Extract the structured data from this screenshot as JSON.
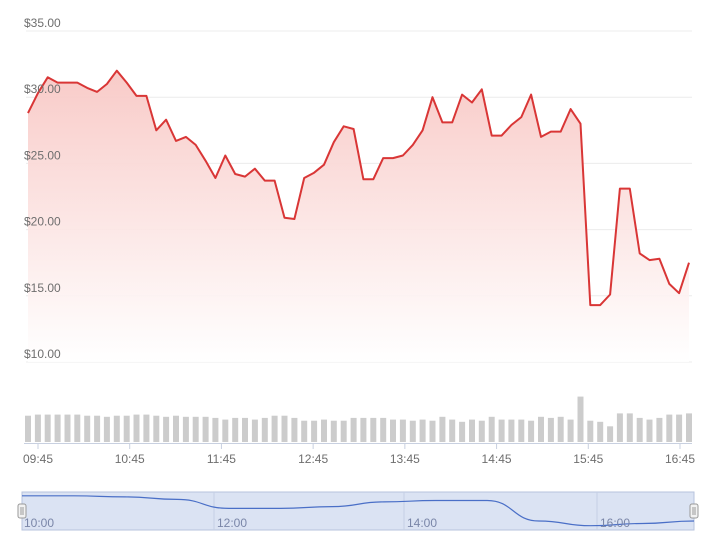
{
  "chart_data": {
    "type": "line",
    "title": "",
    "xlabel": "",
    "ylabel": "",
    "ylim": [
      10,
      35
    ],
    "y_ticks": [
      "$10.00",
      "$15.00",
      "$20.00",
      "$25.00",
      "$30.00",
      "$35.00"
    ],
    "y_tick_values": [
      10,
      15,
      20,
      25,
      30,
      35
    ],
    "x_ticks": [
      "09:45",
      "10:45",
      "11:45",
      "12:45",
      "13:45",
      "14:45",
      "15:45",
      "16:45"
    ],
    "grid": true,
    "line_color": "#d93636",
    "fill_color_top": "#f8c8c5",
    "fill_color_bottom": "#ffffff",
    "volume_color": "#cccccc",
    "price_series": [
      28.8,
      30.3,
      31.5,
      31.1,
      31.1,
      31.1,
      30.7,
      30.4,
      31.0,
      32.0,
      31.1,
      30.1,
      30.1,
      27.5,
      28.3,
      26.7,
      27.0,
      26.4,
      25.2,
      23.9,
      25.6,
      24.2,
      24.0,
      24.6,
      23.7,
      23.7,
      20.9,
      20.8,
      23.9,
      24.3,
      24.9,
      26.6,
      27.8,
      27.6,
      23.8,
      23.8,
      25.4,
      25.4,
      25.6,
      26.4,
      27.5,
      30.0,
      28.1,
      28.1,
      30.2,
      29.6,
      30.6,
      27.1,
      27.1,
      27.9,
      28.5,
      30.2,
      27.0,
      27.4,
      27.4,
      29.1,
      28.0,
      14.3,
      14.3,
      15.1,
      23.1,
      23.1,
      18.2,
      17.7,
      17.8,
      15.9,
      15.2,
      17.5
    ],
    "volume_series": [
      0.47,
      0.49,
      0.49,
      0.49,
      0.49,
      0.49,
      0.47,
      0.47,
      0.45,
      0.47,
      0.47,
      0.49,
      0.49,
      0.47,
      0.45,
      0.47,
      0.45,
      0.45,
      0.45,
      0.43,
      0.4,
      0.43,
      0.43,
      0.4,
      0.43,
      0.47,
      0.47,
      0.43,
      0.38,
      0.38,
      0.4,
      0.38,
      0.38,
      0.43,
      0.43,
      0.43,
      0.43,
      0.4,
      0.4,
      0.38,
      0.4,
      0.38,
      0.45,
      0.4,
      0.36,
      0.4,
      0.38,
      0.45,
      0.4,
      0.4,
      0.4,
      0.38,
      0.45,
      0.43,
      0.45,
      0.4,
      0.81,
      0.38,
      0.36,
      0.28,
      0.51,
      0.51,
      0.43,
      0.4,
      0.43,
      0.49,
      0.49,
      0.51
    ],
    "navigator": {
      "labels": [
        "10:00",
        "12:00",
        "14:00",
        "16:00"
      ],
      "series": [
        0.95,
        0.95,
        0.92,
        0.85,
        0.6,
        0.6,
        0.65,
        0.78,
        0.82,
        0.82,
        0.25,
        0.12,
        0.18,
        0.25
      ],
      "handle_glyph": "⦀"
    }
  }
}
